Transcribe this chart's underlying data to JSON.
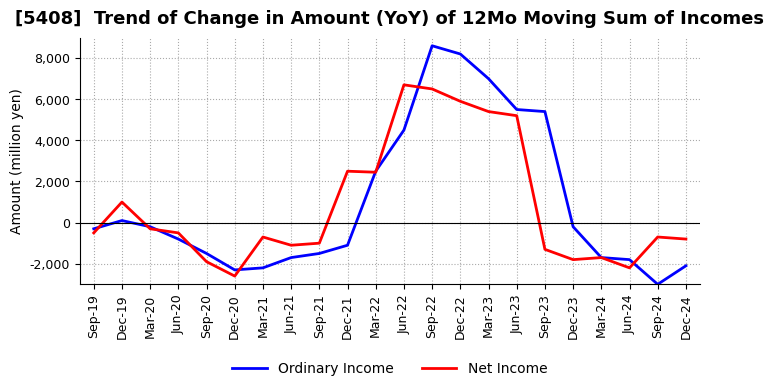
{
  "title": "[5408]  Trend of Change in Amount (YoY) of 12Mo Moving Sum of Incomes",
  "xlabel": "",
  "ylabel": "Amount (million yen)",
  "x_labels": [
    "Sep-19",
    "Dec-19",
    "Mar-20",
    "Jun-20",
    "Sep-20",
    "Dec-20",
    "Mar-21",
    "Jun-21",
    "Sep-21",
    "Dec-21",
    "Mar-22",
    "Jun-22",
    "Sep-22",
    "Dec-22",
    "Mar-23",
    "Jun-23",
    "Sep-23",
    "Dec-23",
    "Mar-24",
    "Jun-24",
    "Sep-24",
    "Dec-24"
  ],
  "ordinary_income": [
    -300,
    100,
    -200,
    -800,
    -1500,
    -2300,
    -2200,
    -1700,
    -1500,
    -1100,
    2500,
    4500,
    8600,
    8200,
    7000,
    5500,
    5400,
    -200,
    -1700,
    -1800,
    -3000,
    -2100
  ],
  "net_income": [
    -500,
    1000,
    -300,
    -500,
    -1900,
    -2600,
    -700,
    -1100,
    -1000,
    2500,
    2450,
    6700,
    6500,
    5900,
    5400,
    5200,
    -1300,
    -1800,
    -1700,
    -2200,
    -700,
    -800
  ],
  "ordinary_color": "#0000ff",
  "net_color": "#ff0000",
  "ylim": [
    -3000,
    9000
  ],
  "yticks": [
    -2000,
    0,
    2000,
    4000,
    6000,
    8000
  ],
  "background_color": "#ffffff",
  "grid_color": "#aaaaaa",
  "line_width": 2.0,
  "legend_labels": [
    "Ordinary Income",
    "Net Income"
  ],
  "title_fontsize": 13,
  "axis_fontsize": 10,
  "tick_fontsize": 9
}
